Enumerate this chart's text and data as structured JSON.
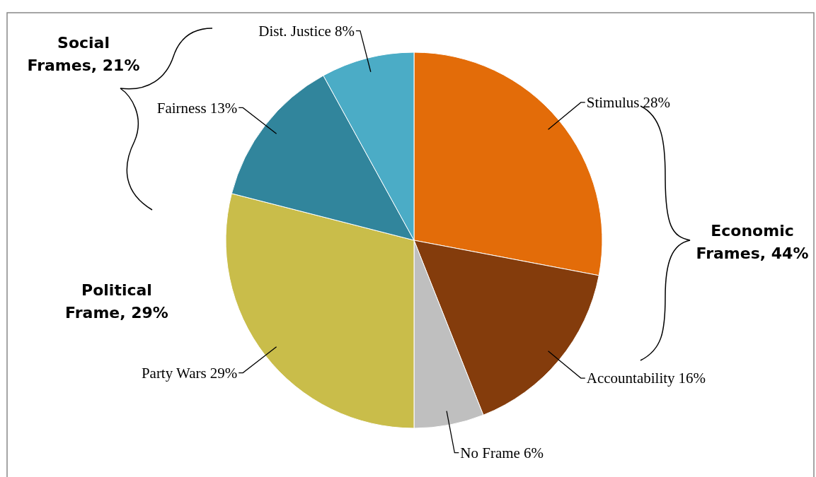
{
  "chart_data": {
    "type": "pie",
    "categories": [
      "Stimulus",
      "Accountability",
      "No Frame",
      "Party Wars",
      "Fairness",
      "Dist. Justice"
    ],
    "values": [
      28,
      16,
      6,
      29,
      13,
      8
    ],
    "colors": [
      "#e36c09",
      "#843c0c",
      "#bfbfbf",
      "#c9bd4a",
      "#31859c",
      "#4bacc6"
    ],
    "value_labels": [
      "28%",
      "16%",
      "6%",
      "29%",
      "13%",
      "8%"
    ],
    "annotations": [
      "Social Frames, 21%",
      "Economic Frames, 44%",
      "Political Frame, 29%"
    ]
  }
}
